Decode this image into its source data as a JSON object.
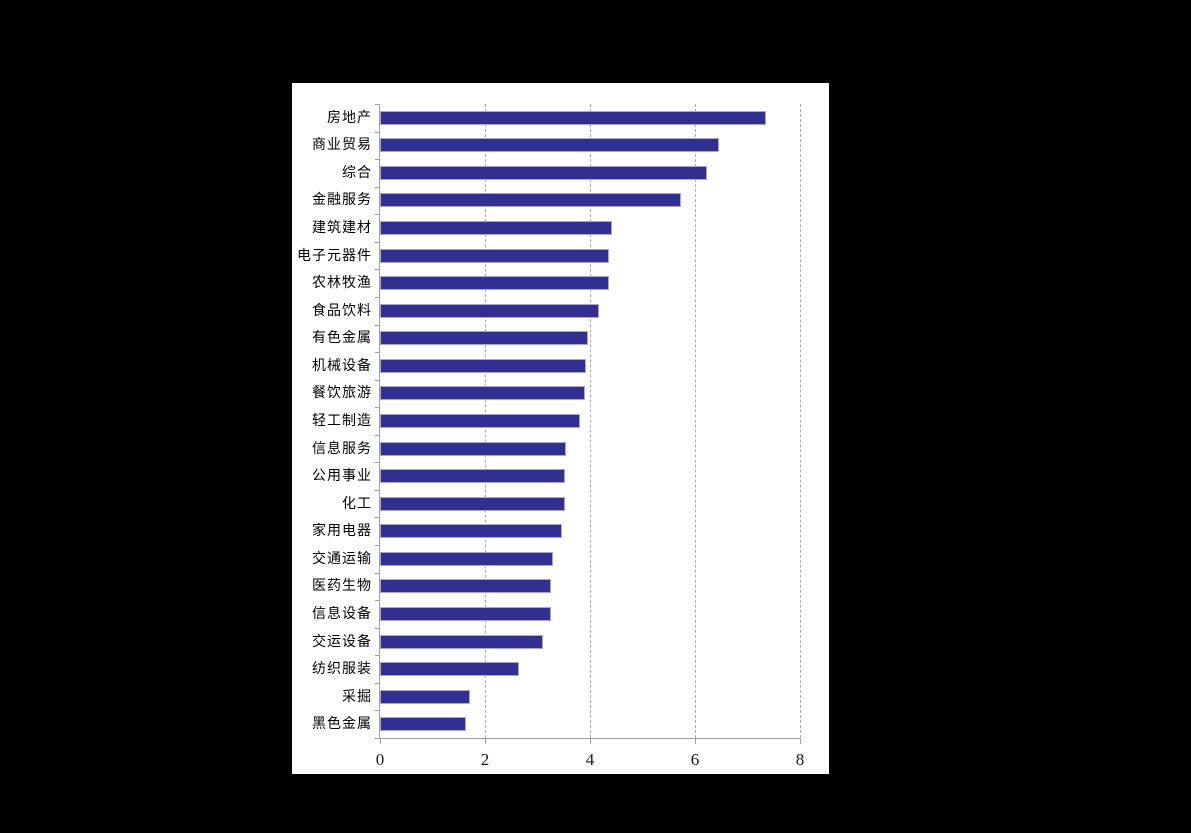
{
  "chart_data": {
    "type": "bar",
    "orientation": "horizontal",
    "categories": [
      "房地产",
      "商业贸易",
      "综合",
      "金融服务",
      "建筑建材",
      "电子元器件",
      "农林牧渔",
      "食品饮料",
      "有色金属",
      "机械设备",
      "餐饮旅游",
      "轻工制造",
      "信息服务",
      "公用事业",
      "化工",
      "家用电器",
      "交通运输",
      "医药生物",
      "信息设备",
      "交运设备",
      "纺织服装",
      "采掘",
      "黑色金属"
    ],
    "values": [
      7.35,
      6.45,
      6.22,
      5.74,
      4.41,
      4.37,
      4.36,
      4.17,
      3.97,
      3.92,
      3.91,
      3.81,
      3.55,
      3.53,
      3.52,
      3.46,
      3.3,
      3.26,
      3.25,
      3.11,
      2.65,
      1.72,
      1.64
    ],
    "xlim": [
      0,
      8
    ],
    "x_ticks": [
      "0",
      "2",
      "4",
      "6",
      "8"
    ],
    "grid": "vertical-dashed",
    "legend": "none",
    "colors": {
      "bar_fill": "#322F93",
      "bar_border": "#A8A6D8",
      "axis": "#9F9F9F",
      "gridline": "#ABABAB",
      "label_text": "#000000",
      "page_background": "#000000",
      "panel_background": "#FFFFFF"
    }
  }
}
